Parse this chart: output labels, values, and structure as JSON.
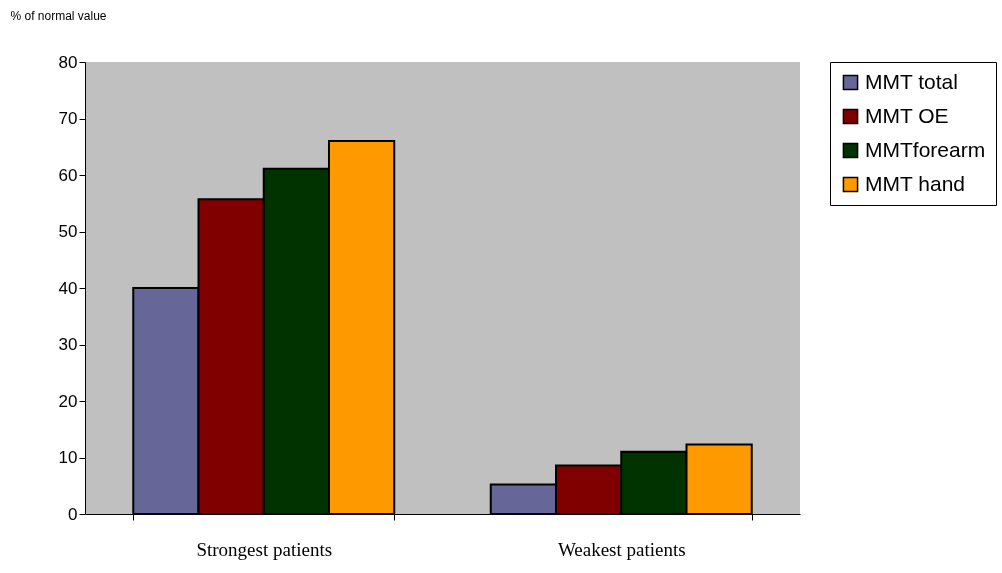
{
  "chart_data": {
    "type": "bar",
    "ylabel": "% of normal value",
    "categories": [
      "Strongest patients",
      "Weakest patients"
    ],
    "series": [
      {
        "name": "MMT total",
        "color": "#666699",
        "values": [
          40,
          5.2
        ]
      },
      {
        "name": "MMT OE",
        "color": "#800000",
        "values": [
          55.7,
          8.6
        ]
      },
      {
        "name": "MMTforearm",
        "color": "#003300",
        "values": [
          61.1,
          11
        ]
      },
      {
        "name": "MMT hand",
        "color": "#ff9900",
        "values": [
          66,
          12.3
        ]
      }
    ],
    "ylim": [
      0,
      80
    ],
    "yticks": [
      0,
      10,
      20,
      30,
      40,
      50,
      60,
      70,
      80
    ],
    "grid": false,
    "legend": "right"
  }
}
